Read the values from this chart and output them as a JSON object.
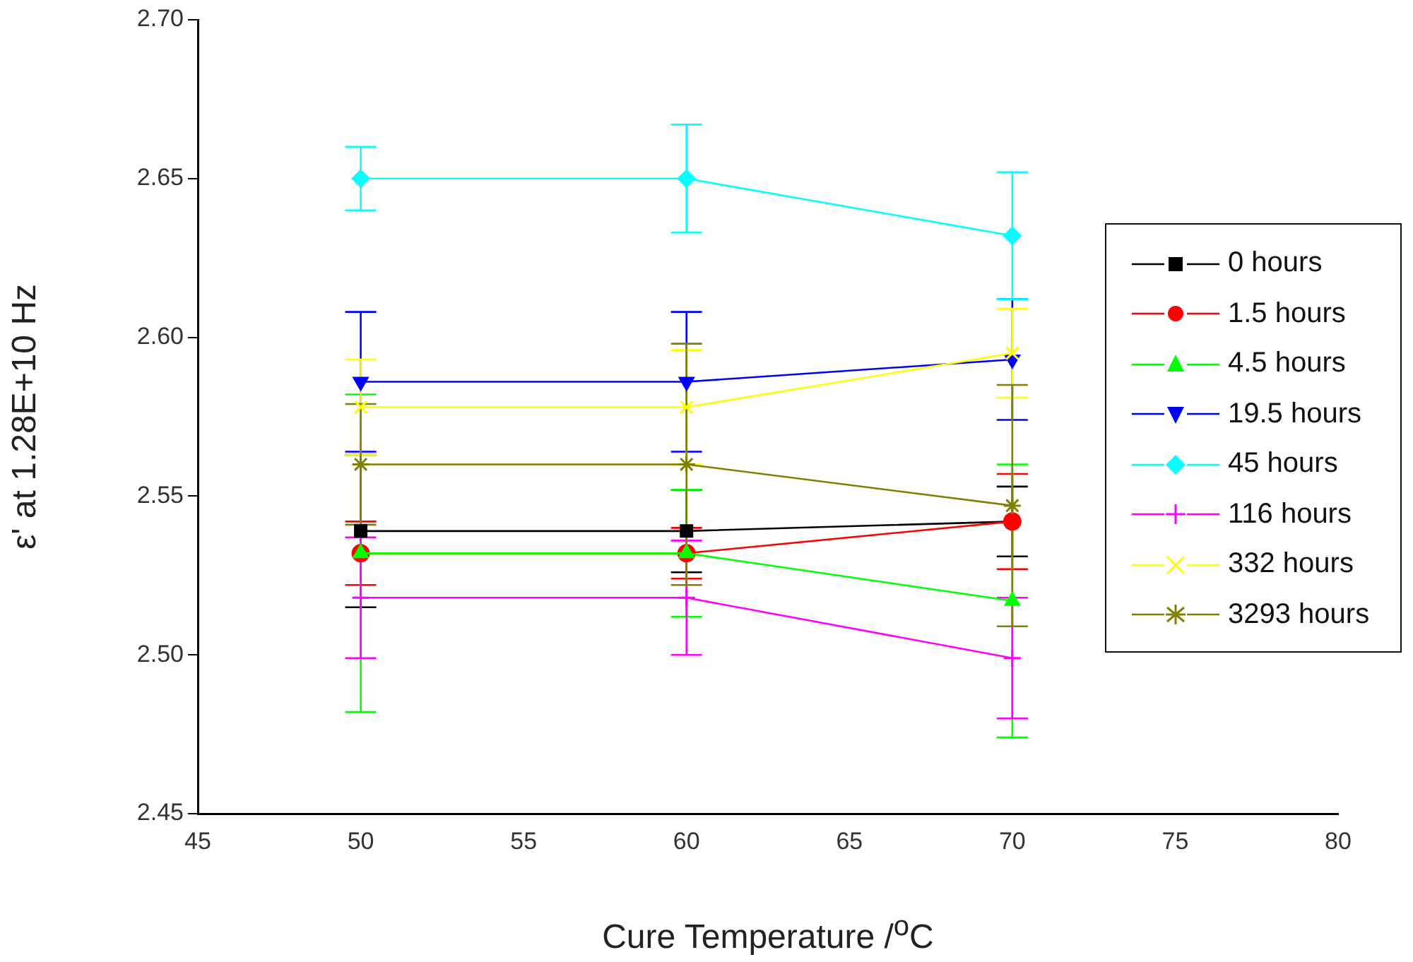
{
  "chart_data": {
    "type": "line",
    "xlabel": "Cure Temperature /$^{o}$C",
    "ylabel": "ε' at 1.28E+10 Hz",
    "x": [
      50,
      60,
      70
    ],
    "xlim": [
      45,
      80
    ],
    "xticks": [
      45,
      50,
      55,
      60,
      65,
      70,
      75,
      80
    ],
    "ylim": [
      2.45,
      2.7
    ],
    "yticks": [
      2.45,
      {
        "value": 2.5,
        "label": "2.50"
      },
      2.55,
      {
        "value": 2.6,
        "label": "2.60"
      },
      2.65,
      {
        "value": 2.7,
        "label": "2.70"
      }
    ],
    "grid": false,
    "legend": "right",
    "line_style": "solid",
    "series": [
      {
        "name": "0 hours",
        "color": "#000000",
        "marker": "square",
        "values": [
          2.539,
          2.539,
          2.542
        ],
        "errors": [
          0.024,
          0.013,
          0.011
        ]
      },
      {
        "name": "1.5 hours",
        "color": "#ff0000",
        "marker": "circle",
        "values": [
          2.532,
          2.532,
          2.542
        ],
        "errors": [
          0.01,
          0.008,
          0.015
        ]
      },
      {
        "name": "4.5 hours",
        "color": "#00ff00",
        "marker": "triangle",
        "values": [
          2.532,
          2.532,
          2.517
        ],
        "errors": [
          0.05,
          0.02,
          0.043
        ]
      },
      {
        "name": "19.5 hours",
        "color": "#0000ff",
        "marker": "triangle-down",
        "values": [
          2.586,
          2.586,
          2.593
        ],
        "errors": [
          0.022,
          0.022,
          0.019
        ]
      },
      {
        "name": "45 hours",
        "color": "#00ffff",
        "marker": "diamond",
        "values": [
          2.65,
          2.65,
          2.632
        ],
        "errors": [
          0.01,
          0.017,
          0.02
        ]
      },
      {
        "name": "116 hours",
        "color": "#ff00ff",
        "marker": "plus",
        "values": [
          2.518,
          2.518,
          2.499
        ],
        "errors": [
          0.019,
          0.018,
          0.019
        ]
      },
      {
        "name": "332 hours",
        "color": "#ffff00",
        "marker": "x",
        "values": [
          2.578,
          2.578,
          2.595
        ],
        "errors": [
          0.015,
          0.018,
          0.014
        ]
      },
      {
        "name": "3293 hours",
        "color": "#808000",
        "marker": "cross",
        "values": [
          2.56,
          2.56,
          2.547
        ],
        "errors": [
          0.019,
          0.038,
          0.038
        ]
      }
    ]
  }
}
